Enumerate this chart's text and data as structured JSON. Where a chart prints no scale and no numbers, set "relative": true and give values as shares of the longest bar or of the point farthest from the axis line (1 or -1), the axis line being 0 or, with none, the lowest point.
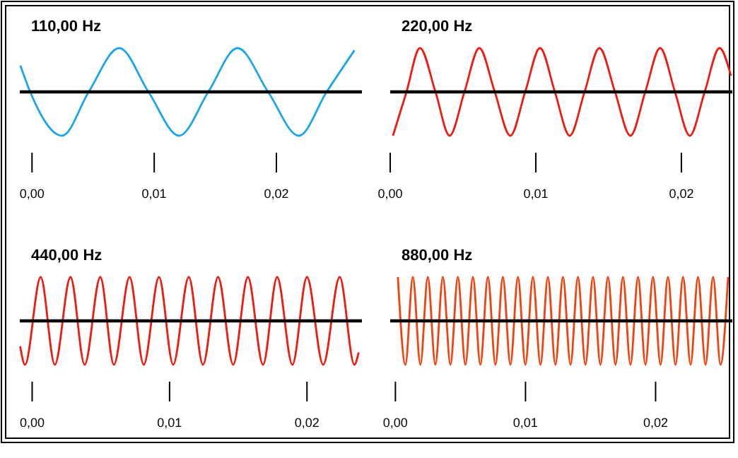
{
  "chart_data": [
    {
      "type": "line",
      "title": "110,00 Hz",
      "relative": true,
      "color": "#1ca4ec",
      "xlim": [
        -0.001,
        0.027
      ],
      "xticks": [
        {
          "value": 0,
          "label": "0,00"
        },
        {
          "value": 0.01,
          "label": "0,01"
        },
        {
          "value": 0.02,
          "label": "0,02"
        }
      ],
      "x": [
        -0.00095,
        -0.00015,
        0.00247,
        0.00464,
        0.00714,
        0.00953,
        0.01204,
        0.01443,
        0.01682,
        0.01932,
        0.02183,
        0.02411,
        0.02639
      ],
      "values": [
        0.6,
        0,
        -1,
        0,
        1,
        0,
        -1,
        0,
        1,
        0,
        -1,
        0,
        0.95
      ]
    },
    {
      "type": "line",
      "title": "220,00 Hz",
      "relative": true,
      "color": "#ee1c10",
      "xlim": [
        0,
        0.0235
      ],
      "xticks": [
        {
          "value": 0,
          "label": "0,00"
        },
        {
          "value": 0.01,
          "label": "0,01"
        },
        {
          "value": 0.02,
          "label": "0,02"
        }
      ],
      "x": [
        0.00019,
        0.00112,
        0.00204,
        0.00311,
        0.00408,
        0.0051,
        0.00612,
        0.00718,
        0.00825,
        0.00927,
        0.01029,
        0.01131,
        0.01233,
        0.01335,
        0.01437,
        0.01544,
        0.0165,
        0.01752,
        0.01854,
        0.01956,
        0.02058,
        0.0216,
        0.02262,
        0.0234
      ],
      "values": [
        -1,
        0,
        1,
        0,
        -1,
        0,
        1,
        0,
        -1,
        0,
        1,
        0,
        -1,
        0,
        1,
        0,
        -1,
        0,
        1,
        0,
        -1,
        0,
        1,
        0.37
      ]
    },
    {
      "type": "line",
      "title": "440,00 Hz",
      "relative": true,
      "color": "#ee1c10",
      "xlim": [
        -0.0009,
        0.024
      ],
      "xticks": [
        {
          "value": 0,
          "label": "0,00"
        },
        {
          "value": 0.01,
          "label": "0,01"
        },
        {
          "value": 0.02,
          "label": "0,02"
        }
      ],
      "x": [
        -0.00087,
        -0.00052,
        0.00062,
        0.00165,
        0.00279,
        0.00382,
        0.00496,
        0.00595,
        0.00709,
        0.00812,
        0.00923,
        0.01026,
        0.0114,
        0.01243,
        0.01353,
        0.01463,
        0.0157,
        0.0168,
        0.01783,
        0.01894,
        0.02,
        0.02118,
        0.02238,
        0.02345,
        0.02376
      ],
      "values": [
        -0.58,
        -1,
        1,
        -1,
        1,
        -1,
        1,
        -1,
        1,
        -1,
        1,
        -1,
        1,
        -1,
        1,
        -1,
        1,
        -1,
        1,
        -1,
        1,
        -1,
        1,
        -1,
        -0.72
      ]
    },
    {
      "type": "line",
      "title": "880,00 Hz",
      "relative": true,
      "color": "#f4400c",
      "xlim": [
        -0.0004,
        0.0259
      ],
      "xticks": [
        {
          "value": 0,
          "label": "0,00"
        },
        {
          "value": 0.01,
          "label": "0,01"
        },
        {
          "value": 0.02,
          "label": "0,02"
        }
      ],
      "x": [
        0.00019,
        0.00077,
        0.00134,
        0.00192,
        0.00249,
        0.00307,
        0.00365,
        0.00423,
        0.0048,
        0.00538,
        0.00596,
        0.00653,
        0.00711,
        0.00769,
        0.00826,
        0.00884,
        0.00942,
        0.00999,
        0.01057,
        0.01115,
        0.01172,
        0.0123,
        0.01288,
        0.01346,
        0.01403,
        0.01461,
        0.01519,
        0.01576,
        0.01634,
        0.01692,
        0.01749,
        0.01807,
        0.01865,
        0.01922,
        0.0198,
        0.02038,
        0.02095,
        0.02153,
        0.02211,
        0.02269,
        0.02326,
        0.02384,
        0.02442,
        0.02499,
        0.02557
      ],
      "values": [
        1,
        -1,
        1,
        -1,
        1,
        -1,
        1,
        -1,
        1,
        -1,
        1,
        -1,
        1,
        -1,
        1,
        -1,
        1,
        -1,
        1,
        -1,
        1,
        -1,
        1,
        -1,
        1,
        -1,
        1,
        -1,
        1,
        -1,
        1,
        -1,
        1,
        -1,
        1,
        -1,
        1,
        -1,
        1,
        -1,
        1,
        -1,
        1,
        -1,
        1
      ]
    }
  ]
}
